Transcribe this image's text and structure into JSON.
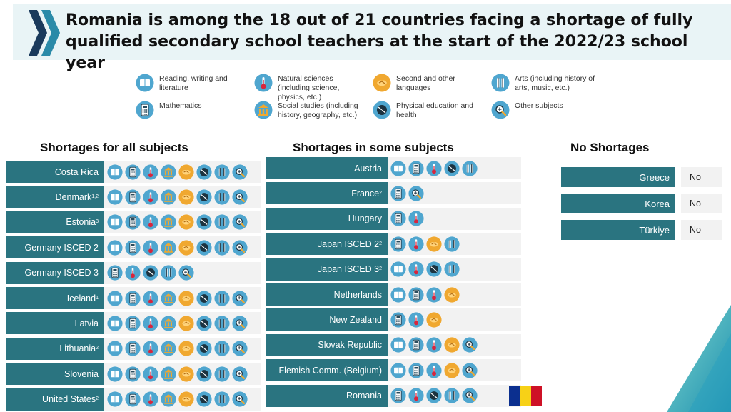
{
  "header": {
    "title": "Romania is among the 18 out of 21 countries facing a shortage of fully qualified secondary school teachers at the start of the 2022/23 school year",
    "logo_icon": "chevron-logo-icon"
  },
  "legend": [
    {
      "key": "reading",
      "label": "Reading, writing and literature",
      "icon": "book-icon"
    },
    {
      "key": "natsci",
      "label": "Natural sciences (including science, physics, etc.)",
      "icon": "thermometer-icon"
    },
    {
      "key": "languages",
      "label": "Second and other languages",
      "icon": "handshake-icon"
    },
    {
      "key": "arts",
      "label": "Arts (including history of arts, music, etc.)",
      "icon": "music-icon"
    },
    {
      "key": "math",
      "label": "Mathematics",
      "icon": "calculator-icon"
    },
    {
      "key": "social",
      "label": "Social studies (including history, geography, etc.)",
      "icon": "columns-icon"
    },
    {
      "key": "pe",
      "label": "Physical education and health",
      "icon": "ball-icon"
    },
    {
      "key": "other",
      "label": "Other subjects",
      "icon": "magnifier-icon"
    }
  ],
  "sections": {
    "all": {
      "title": "Shortages for all subjects",
      "rows": [
        {
          "country": "Costa Rica",
          "sup": "",
          "subjects": [
            "reading",
            "math",
            "natsci",
            "social",
            "languages",
            "pe",
            "arts",
            "other"
          ]
        },
        {
          "country": "Denmark",
          "sup": "1,2",
          "subjects": [
            "reading",
            "math",
            "natsci",
            "social",
            "languages",
            "pe",
            "arts",
            "other"
          ]
        },
        {
          "country": "Estonia",
          "sup": "3",
          "subjects": [
            "reading",
            "math",
            "natsci",
            "social",
            "languages",
            "pe",
            "arts",
            "other"
          ]
        },
        {
          "country": "Germany ISCED 2",
          "sup": "",
          "subjects": [
            "reading",
            "math",
            "natsci",
            "social",
            "languages",
            "pe",
            "arts",
            "other"
          ]
        },
        {
          "country": "Germany ISCED 3",
          "sup": "",
          "subjects": [
            "math",
            "natsci",
            "pe",
            "arts",
            "other"
          ]
        },
        {
          "country": "Iceland",
          "sup": "1",
          "subjects": [
            "reading",
            "math",
            "natsci",
            "social",
            "languages",
            "pe",
            "arts",
            "other"
          ]
        },
        {
          "country": "Latvia",
          "sup": "",
          "subjects": [
            "reading",
            "math",
            "natsci",
            "social",
            "languages",
            "pe",
            "arts",
            "other"
          ]
        },
        {
          "country": "Lithuania",
          "sup": "2",
          "subjects": [
            "reading",
            "math",
            "natsci",
            "social",
            "languages",
            "pe",
            "arts",
            "other"
          ]
        },
        {
          "country": "Slovenia",
          "sup": "",
          "subjects": [
            "reading",
            "math",
            "natsci",
            "social",
            "languages",
            "pe",
            "arts",
            "other"
          ]
        },
        {
          "country": "United States",
          "sup": "2",
          "subjects": [
            "reading",
            "math",
            "natsci",
            "social",
            "languages",
            "pe",
            "arts",
            "other"
          ]
        }
      ]
    },
    "some": {
      "title": "Shortages in some subjects",
      "rows": [
        {
          "country": "Austria",
          "sup": "",
          "subjects": [
            "reading",
            "math",
            "natsci",
            "pe",
            "arts"
          ]
        },
        {
          "country": "France",
          "sup": "2",
          "subjects": [
            "math",
            "other"
          ]
        },
        {
          "country": "Hungary",
          "sup": "",
          "subjects": [
            "math",
            "natsci"
          ]
        },
        {
          "country": "Japan ISCED 2",
          "sup": "2",
          "subjects": [
            "math",
            "natsci",
            "languages",
            "arts"
          ]
        },
        {
          "country": "Japan ISCED 3",
          "sup": "2",
          "subjects": [
            "reading",
            "natsci",
            "pe",
            "arts"
          ]
        },
        {
          "country": "Netherlands",
          "sup": "",
          "subjects": [
            "reading",
            "math",
            "natsci",
            "languages"
          ]
        },
        {
          "country": "New Zealand",
          "sup": "",
          "subjects": [
            "math",
            "natsci",
            "languages"
          ]
        },
        {
          "country": "Slovak Republic",
          "sup": "",
          "subjects": [
            "reading",
            "math",
            "natsci",
            "languages",
            "other"
          ]
        },
        {
          "country": "Flemish Comm. (Belgium)",
          "sup": "",
          "subjects": [
            "reading",
            "math",
            "natsci",
            "languages",
            "other"
          ]
        },
        {
          "country": "Romania",
          "sup": "",
          "subjects": [
            "math",
            "natsci",
            "pe",
            "arts",
            "other"
          ]
        }
      ]
    },
    "none": {
      "title": "No Shortages",
      "rows": [
        {
          "country": "Greece",
          "value": "No"
        },
        {
          "country": "Korea",
          "value": "No"
        },
        {
          "country": "Türkiye",
          "value": "No"
        }
      ]
    }
  },
  "flag": {
    "name": "romania-flag-icon",
    "colors": [
      "#0b2f8f",
      "#f7d117",
      "#ce1126"
    ]
  },
  "colors": {
    "teal": "#2a7480",
    "icon_blue": "#4fa6cf",
    "icon_gold": "#f0a830",
    "icon_dark": "#1c3340",
    "row_bg": "#f2f2f2"
  }
}
